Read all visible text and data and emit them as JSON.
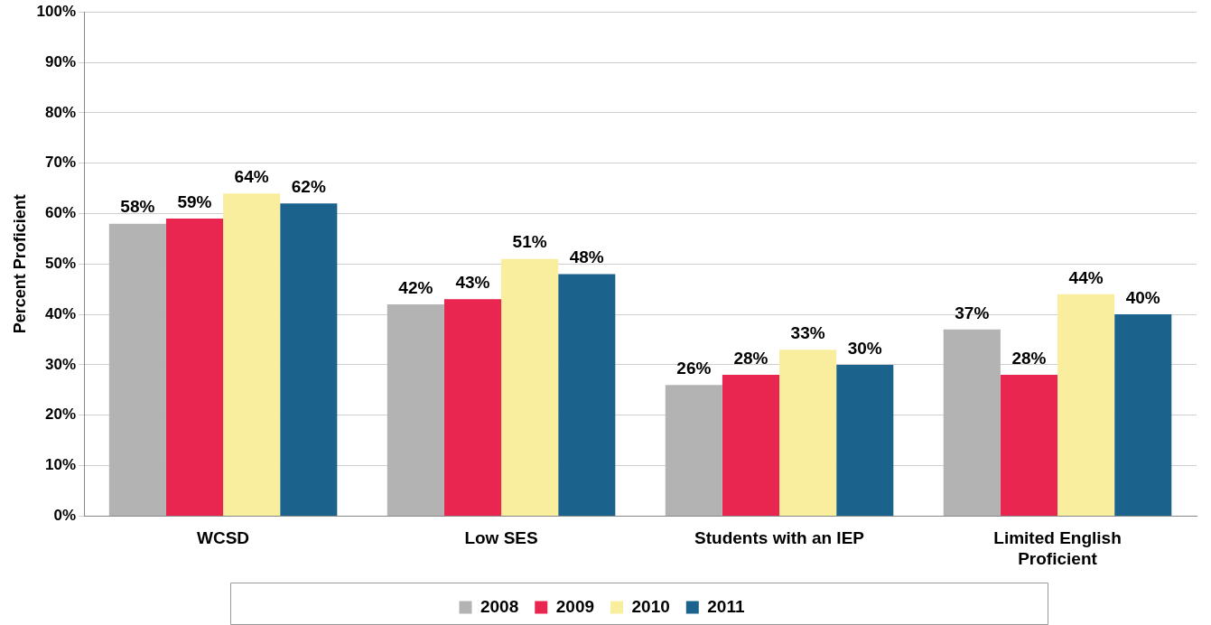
{
  "chart_data": {
    "type": "bar",
    "ylabel": "Percent Proficient",
    "categories": [
      "WCSD",
      "Low SES",
      "Students with an IEP",
      "Limited English Proficient"
    ],
    "series": [
      {
        "name": "2008",
        "color": "#b3b3b3",
        "values": [
          58,
          42,
          26,
          37
        ],
        "value_labels": [
          "58%",
          "42%",
          "26%",
          "37%"
        ]
      },
      {
        "name": "2009",
        "color": "#e8264f",
        "values": [
          59,
          43,
          28,
          28
        ],
        "value_labels": [
          "59%",
          "43%",
          "28%",
          "28%"
        ]
      },
      {
        "name": "2010",
        "color": "#f8ee9e",
        "values": [
          64,
          51,
          33,
          44
        ],
        "value_labels": [
          "64%",
          "51%",
          "33%",
          "44%"
        ]
      },
      {
        "name": "2011",
        "color": "#1b628c",
        "values": [
          62,
          48,
          30,
          40
        ],
        "value_labels": [
          "62%",
          "48%",
          "30%",
          "40%"
        ]
      }
    ],
    "ylim": [
      0,
      100
    ],
    "yticks": [
      {
        "value": 0,
        "label": "0%"
      },
      {
        "value": 10,
        "label": "10%"
      },
      {
        "value": 20,
        "label": "20%"
      },
      {
        "value": 30,
        "label": "30%"
      },
      {
        "value": 40,
        "label": "40%"
      },
      {
        "value": 50,
        "label": "50%"
      },
      {
        "value": 60,
        "label": "60%"
      },
      {
        "value": 70,
        "label": "70%"
      },
      {
        "value": 80,
        "label": "80%"
      },
      {
        "value": 90,
        "label": "90%"
      },
      {
        "value": 100,
        "label": "100%"
      }
    ],
    "grid": "y",
    "legend": "bottom"
  }
}
